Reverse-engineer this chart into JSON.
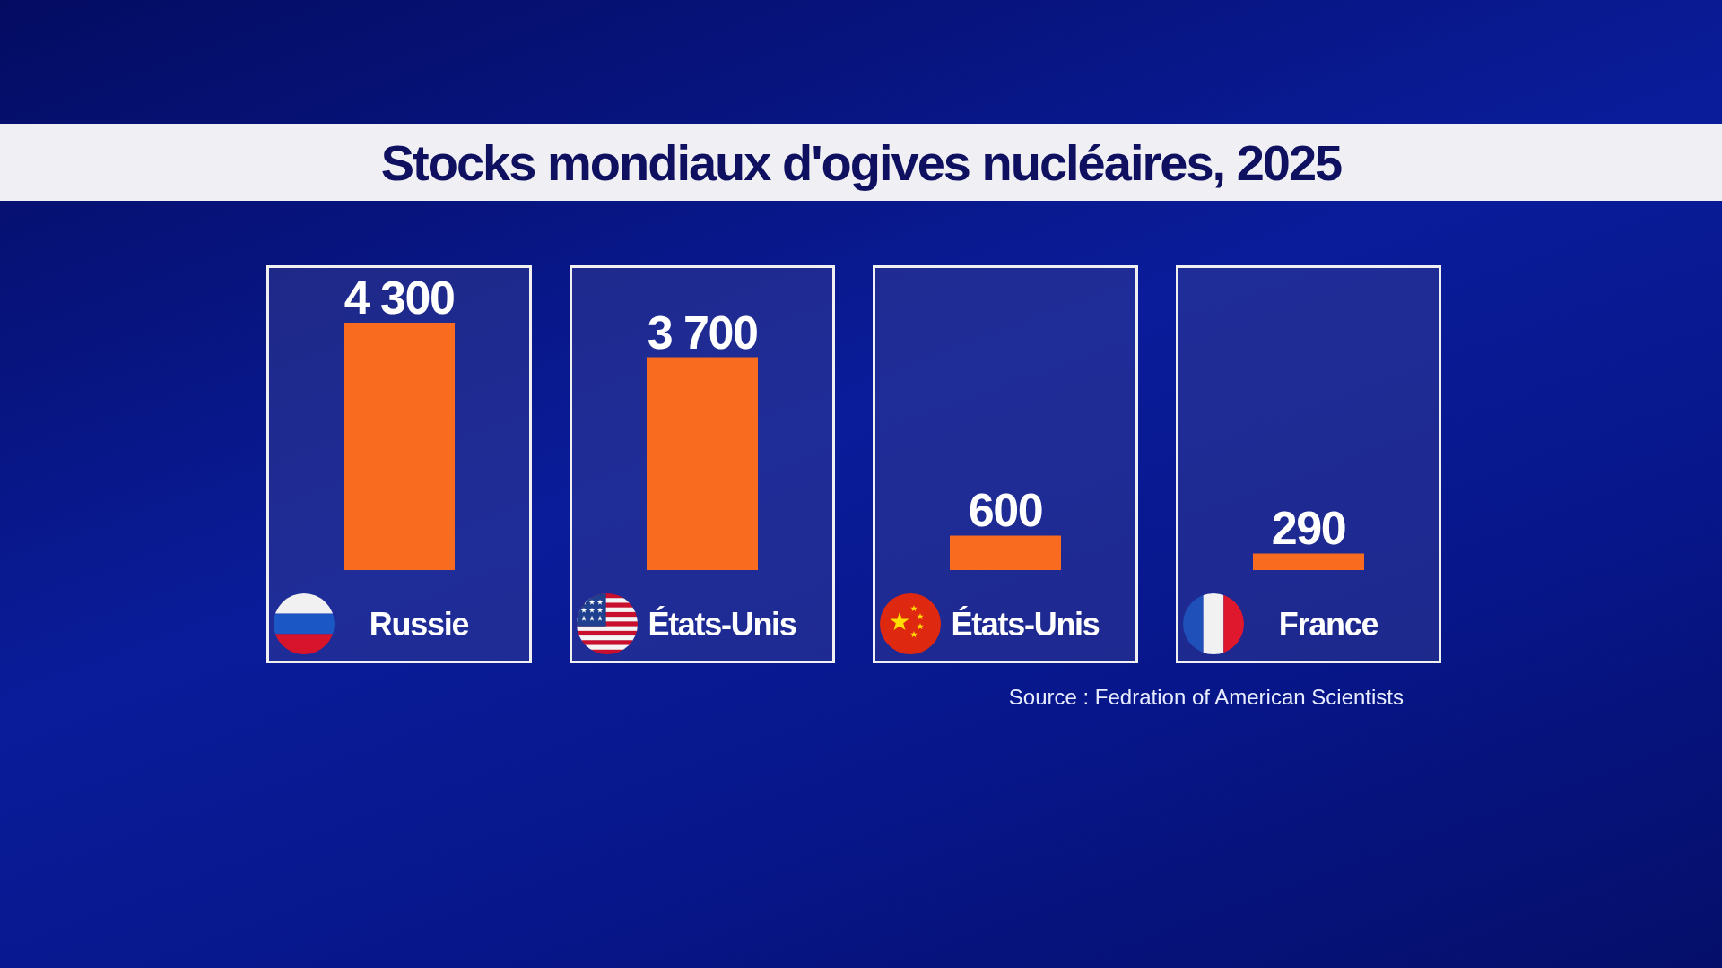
{
  "chart_data": {
    "type": "bar",
    "title": "Stocks mondiaux d'ogives nucléaires, 2025",
    "categories": [
      "Russie",
      "États-Unis",
      "États-Unis",
      "France"
    ],
    "values": [
      4300,
      3700,
      600,
      290
    ],
    "value_labels": [
      "4 300",
      "3 700",
      "600",
      "290"
    ],
    "color": "#f96b1e",
    "annotations": [
      "Source : Fedration of American Scientists"
    ]
  }
}
